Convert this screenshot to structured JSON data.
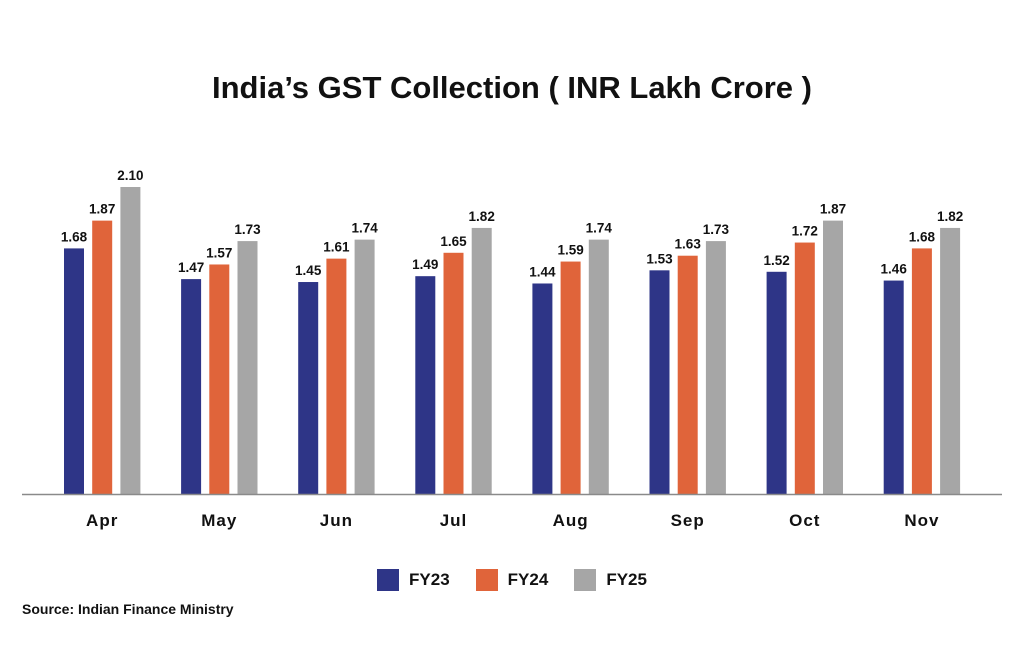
{
  "chart_data": {
    "type": "bar",
    "title": "India’s GST Collection ( INR Lakh Crore )",
    "categories": [
      "Apr",
      "May",
      "Jun",
      "Jul",
      "Aug",
      "Sep",
      "Oct",
      "Nov"
    ],
    "series": [
      {
        "name": "FY23",
        "color": "#2e3587",
        "values": [
          1.68,
          1.47,
          1.45,
          1.49,
          1.44,
          1.53,
          1.52,
          1.46
        ]
      },
      {
        "name": "FY24",
        "color": "#e0643a",
        "values": [
          1.87,
          1.57,
          1.61,
          1.65,
          1.59,
          1.63,
          1.72,
          1.68
        ]
      },
      {
        "name": "FY25",
        "color": "#a6a6a6",
        "values": [
          2.1,
          1.73,
          1.74,
          1.82,
          1.74,
          1.73,
          1.87,
          1.82
        ]
      }
    ],
    "labels": [
      [
        "1.68",
        "1.47",
        "1.45",
        "1.49",
        "1.44",
        "1.53",
        "1.52",
        "1.46"
      ],
      [
        "1.87",
        "1.57",
        "1.61",
        "1.65",
        "1.59",
        "1.63",
        "1.72",
        "1.68"
      ],
      [
        "2.10",
        "1.73",
        "1.74",
        "1.82",
        "1.74",
        "1.73",
        "1.87",
        "1.82"
      ]
    ],
    "ylim": [
      0,
      2.1
    ],
    "grid": false,
    "legend_position": "bottom-center",
    "xlabel": "",
    "ylabel": ""
  },
  "source": "Source: Indian Finance Ministry"
}
